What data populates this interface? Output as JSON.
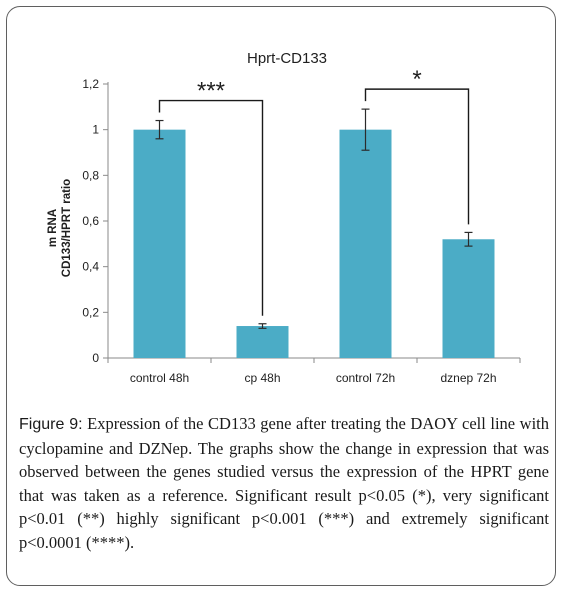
{
  "figure": {
    "label": "Figure 9:",
    "caption": "Expression of the CD133 gene after treating the DAOY cell line with cyclopamine and DZNep. The graphs show the change in expression that was observed between the genes studied versus the expression of the HPRT gene that was taken as a reference. Significant result p<0.05 (*), very significant p<0.01 (**) highly significant p<0.001 (***) and extremely significant p<0.0001 (****)."
  },
  "chart_data": {
    "type": "bar",
    "title": "Hprt-CD133",
    "ylabel_line1": "m RNA",
    "ylabel_line2": "CD133/HPRT ratio",
    "categories": [
      "control 48h",
      "cp 48h",
      "control 72h",
      "dznep 72h"
    ],
    "values": [
      1.0,
      0.14,
      1.0,
      0.52
    ],
    "errors": [
      0.04,
      0.01,
      0.09,
      0.03
    ],
    "ylim": [
      0,
      1.2
    ],
    "yticks": [
      0,
      0.2,
      0.4,
      0.6,
      0.8,
      1,
      1.2
    ],
    "ytick_labels": [
      "0",
      "0,2",
      "0,4",
      "0,6",
      "0,8",
      "1",
      "1,2"
    ],
    "bar_color": "#4bacc6",
    "significance": [
      {
        "from": 0,
        "to": 1,
        "label": "***"
      },
      {
        "from": 2,
        "to": 3,
        "label": "*"
      }
    ]
  }
}
